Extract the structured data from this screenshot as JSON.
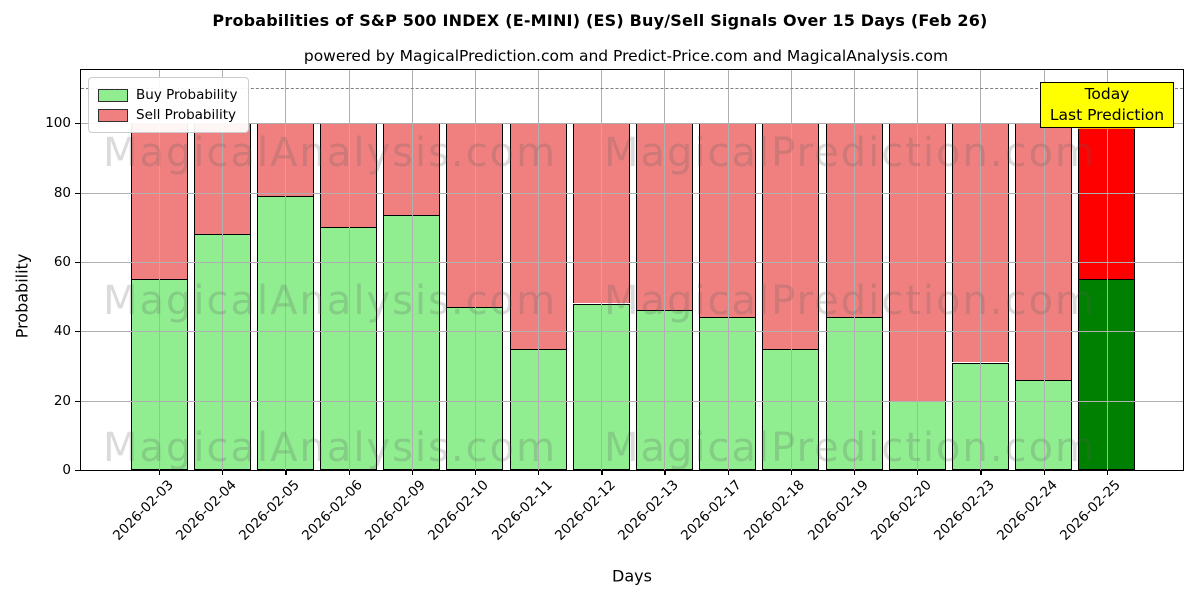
{
  "title": "Probabilities of S&P 500 INDEX (E-MINI) (ES) Buy/Sell Signals Over 15 Days (Feb 26)",
  "subtitle": "powered by MagicalPrediction.com and Predict-Price.com and MagicalAnalysis.com",
  "watermark": {
    "left_text": "MagicalAnalysis.com",
    "right_text": "MagicalPrediction.com",
    "color": "rgba(90,90,90,0.22)"
  },
  "today_label": {
    "line1": "Today",
    "line2": "Last Prediction",
    "bg": "#FFFF00"
  },
  "legend": {
    "position": "upper left",
    "items": [
      {
        "label": "Buy Probability",
        "color": "#90EE90"
      },
      {
        "label": "Sell Probability",
        "color": "#F08080"
      }
    ]
  },
  "axes": {
    "xlabel": "Days",
    "ylabel": "Probability",
    "ytick_labels": [
      "0",
      "20",
      "40",
      "60",
      "80",
      "100"
    ]
  },
  "colors": {
    "buy": "#90EE90",
    "sell": "#F08080",
    "buy_today": "#008000",
    "sell_today": "#FF0000",
    "grid": "#b0b0b0",
    "dashed_line": "#7f7f7f",
    "label_overlap_tint": "#FFA500",
    "bar_edge": "#000000"
  },
  "chart_data": {
    "type": "bar",
    "stacked": true,
    "title": "Probabilities of S&P 500 INDEX (E-MINI) (ES) Buy/Sell Signals Over 15 Days (Feb 26)",
    "xlabel": "Days",
    "ylabel": "Probability",
    "categories": [
      "2026-02-03",
      "2026-02-04",
      "2026-02-05",
      "2026-02-06",
      "2026-02-09",
      "2026-02-10",
      "2026-02-11",
      "2026-02-12",
      "2026-02-13",
      "2026-02-17",
      "2026-02-18",
      "2026-02-19",
      "2026-02-20",
      "2026-02-23",
      "2026-02-24",
      "2026-02-25"
    ],
    "series": [
      {
        "name": "Buy Probability",
        "color": "#90EE90",
        "today_color": "#008000",
        "values": [
          55,
          68,
          79,
          70,
          73.5,
          47,
          35,
          48,
          46,
          44,
          35,
          44,
          20,
          31,
          26,
          55
        ]
      },
      {
        "name": "Sell Probability",
        "color": "#F08080",
        "today_color": "#FF0000",
        "values": [
          45,
          32,
          21,
          30,
          26.5,
          53,
          65,
          52,
          54,
          56,
          65,
          56,
          80,
          69,
          74,
          45
        ]
      }
    ],
    "stack_total": 100,
    "yticks": [
      0,
      20,
      40,
      60,
      80,
      100
    ],
    "ylim": [
      0,
      115.3
    ],
    "dashed_line_y": 110,
    "grid": true,
    "legend_position": "upper left",
    "today_index": 15,
    "today_annotation": "Today Last Prediction"
  }
}
